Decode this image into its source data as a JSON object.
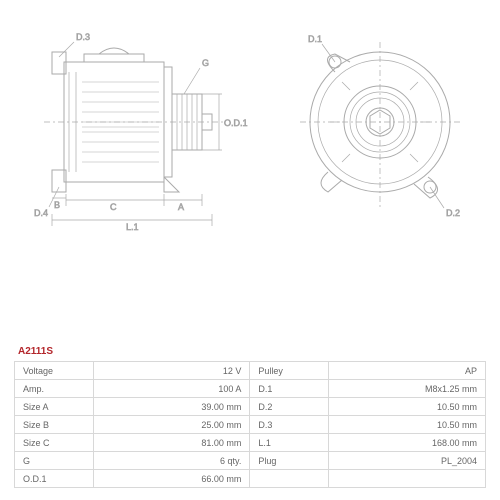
{
  "part_number": "A2111S",
  "diagram": {
    "side_labels": {
      "d3": "D.3",
      "d4": "D.4",
      "g": "G",
      "b": "B",
      "c": "C",
      "a": "A",
      "l1": "L.1",
      "od1": "O.D.1"
    },
    "front_labels": {
      "d1": "D.1",
      "d2": "D.2"
    },
    "colors": {
      "line": "#aaaaaa",
      "text": "#666666",
      "accent": "#b3262b",
      "bg": "#ffffff",
      "border": "#d8d8d8"
    }
  },
  "specs": {
    "left": [
      {
        "label": "Voltage",
        "value": "12 V"
      },
      {
        "label": "Amp.",
        "value": "100 A"
      },
      {
        "label": "Size A",
        "value": "39.00 mm"
      },
      {
        "label": "Size B",
        "value": "25.00 mm"
      },
      {
        "label": "Size C",
        "value": "81.00 mm"
      },
      {
        "label": "G",
        "value": "6 qty."
      },
      {
        "label": "O.D.1",
        "value": "66.00 mm"
      }
    ],
    "right": [
      {
        "label": "Pulley",
        "value": "AP"
      },
      {
        "label": "D.1",
        "value": "M8x1.25 mm"
      },
      {
        "label": "D.2",
        "value": "10.50 mm"
      },
      {
        "label": "D.3",
        "value": "10.50 mm"
      },
      {
        "label": "L.1",
        "value": "168.00 mm"
      },
      {
        "label": "Plug",
        "value": "PL_2004"
      },
      {
        "label": "",
        "value": ""
      }
    ]
  }
}
